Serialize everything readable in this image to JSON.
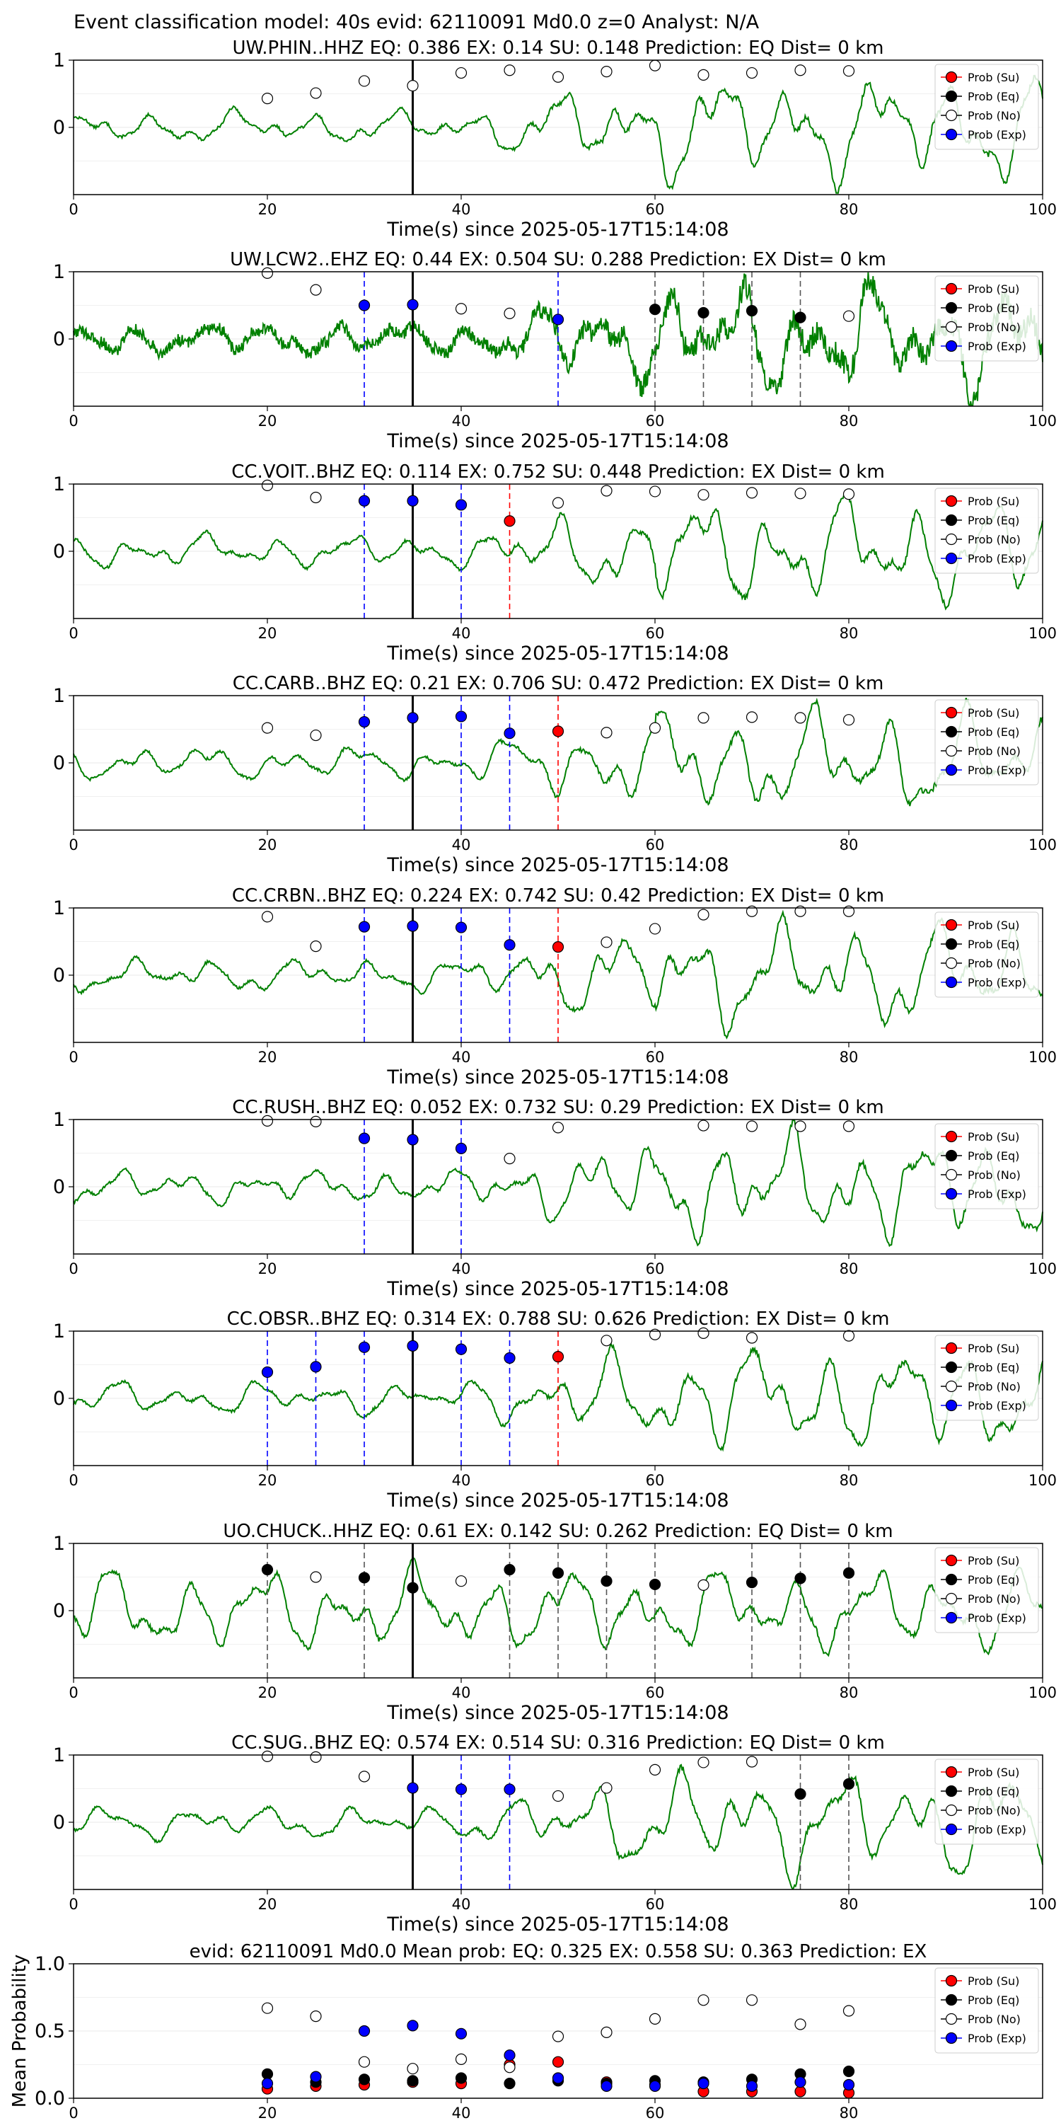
{
  "suptitle": "Event classification model: 40s evid: 62110091 Md0.0 z=0 Analyst: N/A",
  "xlabel": "Time(s) since 2025-05-17T15:14:08",
  "legend": [
    "Prob (Su)",
    "Prob (Eq)",
    "Prob (No)",
    "Prob (Exp)"
  ],
  "colors": {
    "waveform": "#008000",
    "su": "#ff0000",
    "eq": "#000000",
    "no": "#ffffff",
    "exp": "#0000ff"
  },
  "chart_data": [
    {
      "type": "line",
      "title": "UW.PHIN..HHZ   EQ: 0.386  EX: 0.14  SU: 0.148   Prediction: EQ    Dist= 0 km",
      "xlim": [
        0,
        100
      ],
      "ylim": [
        -1,
        1
      ],
      "xticks": [
        0,
        20,
        40,
        60,
        80,
        100
      ],
      "yticks": [
        0,
        1
      ],
      "grid": true,
      "legend_position": "upper right",
      "style": "smooth",
      "pick": 35,
      "points": {
        "no": [
          [
            20,
            0.43
          ],
          [
            25,
            0.51
          ],
          [
            30,
            0.69
          ],
          [
            35,
            0.62
          ],
          [
            40,
            0.81
          ],
          [
            45,
            0.85
          ],
          [
            50,
            0.75
          ],
          [
            55,
            0.83
          ],
          [
            60,
            0.92
          ],
          [
            65,
            0.78
          ],
          [
            70,
            0.81
          ],
          [
            75,
            0.85
          ],
          [
            80,
            0.84
          ]
        ]
      },
      "vlines": []
    },
    {
      "type": "line",
      "title": "UW.LCW2..EHZ   EQ: 0.44  EX: 0.504  SU: 0.288   Prediction: EX    Dist= 0 km",
      "xlim": [
        0,
        100
      ],
      "ylim": [
        -1,
        1
      ],
      "xticks": [
        0,
        20,
        40,
        60,
        80,
        100
      ],
      "yticks": [
        0,
        1
      ],
      "grid": true,
      "legend_position": "upper right",
      "style": "noisy",
      "pick": 35,
      "points": {
        "no": [
          [
            20,
            0.98
          ],
          [
            25,
            0.73
          ],
          [
            40,
            0.45
          ],
          [
            45,
            0.38
          ],
          [
            80,
            0.34
          ]
        ],
        "exp": [
          [
            30,
            0.5
          ],
          [
            35,
            0.51
          ],
          [
            50,
            0.29
          ]
        ],
        "eq": [
          [
            60,
            0.44
          ],
          [
            65,
            0.39
          ],
          [
            70,
            0.42
          ],
          [
            75,
            0.32
          ]
        ]
      },
      "vlines": [
        [
          30,
          "exp"
        ],
        [
          50,
          "exp"
        ],
        [
          60,
          "eq"
        ],
        [
          65,
          "eq"
        ],
        [
          70,
          "eq"
        ],
        [
          75,
          "eq"
        ]
      ]
    },
    {
      "type": "line",
      "title": "CC.VOIT..BHZ   EQ: 0.114  EX: 0.752  SU: 0.448   Prediction: EX    Dist= 0 km",
      "xlim": [
        0,
        100
      ],
      "ylim": [
        -1,
        1
      ],
      "xticks": [
        0,
        20,
        40,
        60,
        80,
        100
      ],
      "yticks": [
        0,
        1
      ],
      "grid": true,
      "legend_position": "upper right",
      "style": "smooth",
      "pick": 35,
      "points": {
        "no": [
          [
            20,
            0.98
          ],
          [
            25,
            0.8
          ],
          [
            50,
            0.72
          ],
          [
            55,
            0.9
          ],
          [
            60,
            0.89
          ],
          [
            65,
            0.84
          ],
          [
            70,
            0.87
          ],
          [
            75,
            0.86
          ],
          [
            80,
            0.85
          ]
        ],
        "exp": [
          [
            30,
            0.75
          ],
          [
            35,
            0.75
          ],
          [
            40,
            0.69
          ]
        ],
        "su": [
          [
            45,
            0.45
          ]
        ]
      },
      "vlines": [
        [
          30,
          "exp"
        ],
        [
          40,
          "exp"
        ],
        [
          45,
          "su"
        ]
      ]
    },
    {
      "type": "line",
      "title": "CC.CARB..BHZ   EQ: 0.21  EX: 0.706  SU: 0.472   Prediction: EX    Dist= 0 km",
      "xlim": [
        0,
        100
      ],
      "ylim": [
        -1,
        1
      ],
      "xticks": [
        0,
        20,
        40,
        60,
        80,
        100
      ],
      "yticks": [
        0,
        1
      ],
      "grid": true,
      "legend_position": "upper right",
      "style": "smooth",
      "pick": 35,
      "points": {
        "no": [
          [
            20,
            0.52
          ],
          [
            25,
            0.41
          ],
          [
            55,
            0.45
          ],
          [
            60,
            0.52
          ],
          [
            65,
            0.67
          ],
          [
            70,
            0.68
          ],
          [
            75,
            0.67
          ],
          [
            80,
            0.64
          ]
        ],
        "exp": [
          [
            30,
            0.61
          ],
          [
            35,
            0.67
          ],
          [
            40,
            0.69
          ],
          [
            45,
            0.44
          ]
        ],
        "su": [
          [
            50,
            0.47
          ]
        ]
      },
      "vlines": [
        [
          30,
          "exp"
        ],
        [
          40,
          "exp"
        ],
        [
          45,
          "exp"
        ],
        [
          50,
          "su"
        ]
      ]
    },
    {
      "type": "line",
      "title": "CC.CRBN..BHZ   EQ: 0.224  EX: 0.742  SU: 0.42   Prediction: EX    Dist= 0 km",
      "xlim": [
        0,
        100
      ],
      "ylim": [
        -1,
        1
      ],
      "xticks": [
        0,
        20,
        40,
        60,
        80,
        100
      ],
      "yticks": [
        0,
        1
      ],
      "grid": true,
      "legend_position": "upper right",
      "style": "smooth",
      "pick": 35,
      "points": {
        "no": [
          [
            20,
            0.87
          ],
          [
            25,
            0.43
          ],
          [
            55,
            0.49
          ],
          [
            60,
            0.69
          ],
          [
            65,
            0.9
          ],
          [
            70,
            0.95
          ],
          [
            75,
            0.95
          ],
          [
            80,
            0.95
          ]
        ],
        "exp": [
          [
            30,
            0.72
          ],
          [
            35,
            0.73
          ],
          [
            40,
            0.71
          ],
          [
            45,
            0.45
          ]
        ],
        "su": [
          [
            50,
            0.42
          ]
        ]
      },
      "vlines": [
        [
          30,
          "exp"
        ],
        [
          40,
          "exp"
        ],
        [
          45,
          "exp"
        ],
        [
          50,
          "su"
        ]
      ]
    },
    {
      "type": "line",
      "title": "CC.RUSH..BHZ   EQ: 0.052  EX: 0.732  SU: 0.29   Prediction: EX    Dist= 0 km",
      "xlim": [
        0,
        100
      ],
      "ylim": [
        -1,
        1
      ],
      "xticks": [
        0,
        20,
        40,
        60,
        80,
        100
      ],
      "yticks": [
        0,
        1
      ],
      "grid": true,
      "legend_position": "upper right",
      "style": "smooth",
      "pick": 35,
      "points": {
        "no": [
          [
            20,
            0.98
          ],
          [
            25,
            0.97
          ],
          [
            45,
            0.42
          ],
          [
            50,
            0.88
          ],
          [
            65,
            0.91
          ],
          [
            70,
            0.9
          ],
          [
            75,
            0.9
          ],
          [
            80,
            0.9
          ]
        ],
        "exp": [
          [
            30,
            0.72
          ],
          [
            35,
            0.7
          ],
          [
            40,
            0.57
          ]
        ]
      },
      "vlines": [
        [
          30,
          "exp"
        ],
        [
          40,
          "exp"
        ]
      ]
    },
    {
      "type": "line",
      "title": "CC.OBSR..BHZ   EQ: 0.314  EX: 0.788  SU: 0.626   Prediction: EX    Dist= 0 km",
      "xlim": [
        0,
        100
      ],
      "ylim": [
        -1,
        1
      ],
      "xticks": [
        0,
        20,
        40,
        60,
        80,
        100
      ],
      "yticks": [
        0,
        1
      ],
      "grid": true,
      "legend_position": "upper right",
      "style": "smooth",
      "pick": 35,
      "points": {
        "no": [
          [
            55,
            0.86
          ],
          [
            60,
            0.95
          ],
          [
            65,
            0.97
          ],
          [
            70,
            0.9
          ],
          [
            80,
            0.93
          ]
        ],
        "exp": [
          [
            20,
            0.39
          ],
          [
            25,
            0.47
          ],
          [
            30,
            0.76
          ],
          [
            35,
            0.78
          ],
          [
            40,
            0.73
          ],
          [
            45,
            0.6
          ]
        ],
        "su": [
          [
            50,
            0.62
          ]
        ]
      },
      "vlines": [
        [
          20,
          "exp"
        ],
        [
          25,
          "exp"
        ],
        [
          30,
          "exp"
        ],
        [
          40,
          "exp"
        ],
        [
          45,
          "exp"
        ],
        [
          50,
          "su"
        ]
      ]
    },
    {
      "type": "line",
      "title": "UO.CHUCK..HHZ   EQ: 0.61  EX: 0.142  SU: 0.262   Prediction: EQ    Dist= 0 km",
      "xlim": [
        0,
        100
      ],
      "ylim": [
        -1,
        1
      ],
      "xticks": [
        0,
        20,
        40,
        60,
        80,
        100
      ],
      "yticks": [
        0,
        1
      ],
      "grid": true,
      "legend_position": "upper right",
      "style": "smooth",
      "pick": 35,
      "points": {
        "no": [
          [
            25,
            0.5
          ],
          [
            40,
            0.44
          ],
          [
            65,
            0.38
          ]
        ],
        "eq": [
          [
            20,
            0.61
          ],
          [
            30,
            0.49
          ],
          [
            35,
            0.34
          ],
          [
            45,
            0.61
          ],
          [
            50,
            0.56
          ],
          [
            55,
            0.44
          ],
          [
            60,
            0.39
          ],
          [
            70,
            0.42
          ],
          [
            75,
            0.48
          ],
          [
            80,
            0.56
          ]
        ]
      },
      "vlines": [
        [
          20,
          "eq"
        ],
        [
          30,
          "eq"
        ],
        [
          45,
          "eq"
        ],
        [
          50,
          "eq"
        ],
        [
          55,
          "eq"
        ],
        [
          60,
          "eq"
        ],
        [
          70,
          "eq"
        ],
        [
          75,
          "eq"
        ],
        [
          80,
          "eq"
        ]
      ]
    },
    {
      "type": "line",
      "title": "CC.SUG..BHZ   EQ: 0.574  EX: 0.514  SU: 0.316   Prediction: EQ    Dist= 0 km",
      "xlim": [
        0,
        100
      ],
      "ylim": [
        -1,
        1
      ],
      "xticks": [
        0,
        20,
        40,
        60,
        80,
        100
      ],
      "yticks": [
        0,
        1
      ],
      "grid": true,
      "legend_position": "upper right",
      "style": "smooth",
      "pick": 35,
      "points": {
        "no": [
          [
            20,
            0.98
          ],
          [
            25,
            0.97
          ],
          [
            30,
            0.68
          ],
          [
            50,
            0.39
          ],
          [
            55,
            0.51
          ],
          [
            60,
            0.78
          ],
          [
            65,
            0.89
          ],
          [
            70,
            0.9
          ]
        ],
        "exp": [
          [
            35,
            0.51
          ],
          [
            40,
            0.49
          ],
          [
            45,
            0.49
          ]
        ],
        "eq": [
          [
            75,
            0.42
          ],
          [
            80,
            0.57
          ]
        ]
      },
      "vlines": [
        [
          40,
          "exp"
        ],
        [
          45,
          "exp"
        ],
        [
          75,
          "eq"
        ],
        [
          80,
          "eq"
        ]
      ]
    },
    {
      "type": "scatter",
      "title": "evid: 62110091  Md0.0    Mean prob:    EQ: 0.325  EX: 0.558  SU: 0.363   Prediction: EX",
      "ylabel": "Mean Probability",
      "xlim": [
        0,
        100
      ],
      "ylim": [
        0,
        1
      ],
      "xticks": [
        0,
        20,
        40,
        60,
        80
      ],
      "yticks": [
        0.0,
        0.5,
        1.0
      ],
      "grid": true,
      "legend_position": "upper right",
      "x": [
        20,
        25,
        30,
        35,
        40,
        45,
        50,
        55,
        60,
        65,
        70,
        75,
        80
      ],
      "series": [
        {
          "name": "Prob (Su)",
          "color": "su",
          "values": [
            0.07,
            0.09,
            0.1,
            0.12,
            0.11,
            0.25,
            0.27,
            0.12,
            0.1,
            0.05,
            0.05,
            0.05,
            0.04
          ]
        },
        {
          "name": "Prob (Eq)",
          "color": "eq",
          "values": [
            0.18,
            0.12,
            0.14,
            0.13,
            0.15,
            0.11,
            0.13,
            0.11,
            0.13,
            0.12,
            0.14,
            0.18,
            0.2
          ]
        },
        {
          "name": "Prob (No)",
          "color": "no",
          "values": [
            0.67,
            0.61,
            0.27,
            0.22,
            0.29,
            0.23,
            0.46,
            0.49,
            0.59,
            0.73,
            0.73,
            0.55,
            0.65
          ]
        },
        {
          "name": "Prob (Exp)",
          "color": "exp",
          "values": [
            0.11,
            0.16,
            0.5,
            0.54,
            0.48,
            0.32,
            0.15,
            0.09,
            0.09,
            0.11,
            0.09,
            0.12,
            0.1
          ]
        }
      ]
    }
  ]
}
